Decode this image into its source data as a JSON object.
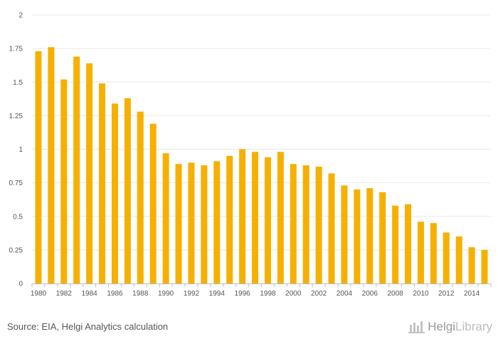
{
  "chart_data": {
    "type": "bar",
    "title": "",
    "xlabel": "",
    "ylabel": "",
    "ylim": [
      0,
      2
    ],
    "yticks": [
      "0",
      "0.25",
      "0.5",
      "0.75",
      "1",
      "1.25",
      "1.5",
      "1.75",
      "2"
    ],
    "xtick_labels": [
      "1980",
      "1982",
      "1984",
      "1986",
      "1988",
      "1990",
      "1992",
      "1994",
      "1996",
      "1998",
      "2000",
      "2002",
      "2004",
      "2006",
      "2008",
      "2010",
      "2012",
      "2014"
    ],
    "categories": [
      "1980",
      "1981",
      "1982",
      "1983",
      "1984",
      "1985",
      "1986",
      "1987",
      "1988",
      "1989",
      "1990",
      "1991",
      "1992",
      "1993",
      "1994",
      "1995",
      "1996",
      "1997",
      "1998",
      "1999",
      "2000",
      "2001",
      "2002",
      "2003",
      "2004",
      "2005",
      "2006",
      "2007",
      "2008",
      "2009",
      "2010",
      "2011",
      "2012",
      "2013",
      "2014",
      "2015"
    ],
    "values": [
      1.73,
      1.76,
      1.52,
      1.69,
      1.64,
      1.49,
      1.34,
      1.38,
      1.28,
      1.19,
      0.97,
      0.89,
      0.9,
      0.88,
      0.91,
      0.95,
      1.0,
      0.98,
      0.94,
      0.98,
      0.89,
      0.88,
      0.87,
      0.82,
      0.73,
      0.7,
      0.71,
      0.68,
      0.58,
      0.59,
      0.46,
      0.45,
      0.38,
      0.35,
      0.27,
      0.25
    ],
    "grid": true,
    "color": "#f6b000"
  },
  "footer": {
    "source": "Source: EIA, Helgi Analytics calculation",
    "brand_first": "Helgi",
    "brand_second": "Library"
  }
}
